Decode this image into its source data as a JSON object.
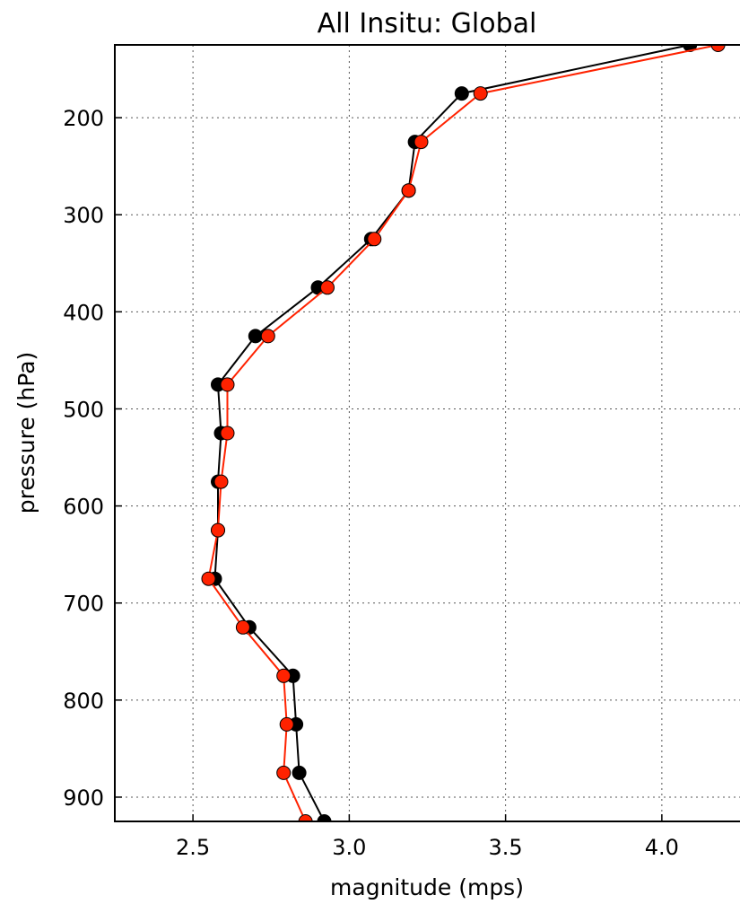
{
  "chart_data": {
    "type": "line",
    "title": "All Insitu: Global",
    "xlabel": "magnitude (mps)",
    "ylabel": "pressure (hPa)",
    "xlim": [
      2.25,
      4.25
    ],
    "ylim": [
      925,
      125
    ],
    "y_inverted": true,
    "grid": true,
    "xticks": [
      2.5,
      3.0,
      3.5,
      4.0
    ],
    "xtick_labels": [
      "2.5",
      "3.0",
      "3.5",
      "4.0"
    ],
    "yticks": [
      200,
      300,
      400,
      500,
      600,
      700,
      800,
      900
    ],
    "ytick_labels": [
      "200",
      "300",
      "400",
      "500",
      "600",
      "700",
      "800",
      "900"
    ],
    "pressure_levels": [
      125,
      175,
      225,
      275,
      325,
      375,
      425,
      475,
      525,
      575,
      625,
      675,
      725,
      775,
      825,
      875,
      925
    ],
    "series": [
      {
        "color": "#000000",
        "values": [
          4.09,
          3.36,
          3.21,
          3.19,
          3.07,
          2.9,
          2.7,
          2.58,
          2.59,
          2.58,
          2.58,
          2.57,
          2.68,
          2.82,
          2.83,
          2.84,
          2.92
        ]
      },
      {
        "color": "#ff2200",
        "values": [
          4.18,
          3.42,
          3.23,
          3.19,
          3.08,
          2.93,
          2.74,
          2.61,
          2.61,
          2.59,
          2.58,
          2.55,
          2.66,
          2.79,
          2.8,
          2.79,
          2.86
        ]
      }
    ]
  }
}
